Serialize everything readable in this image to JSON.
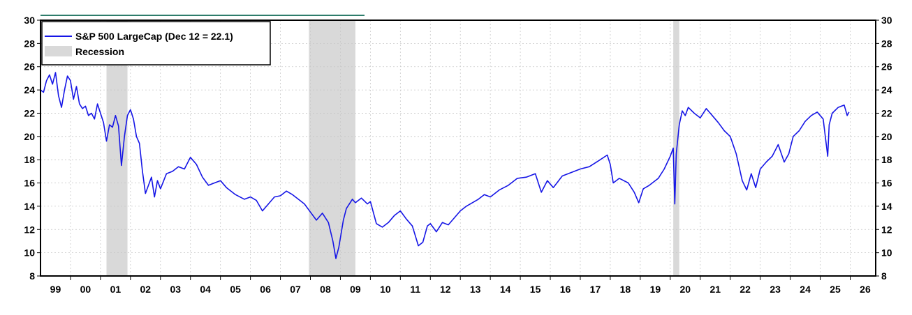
{
  "chart_data": {
    "type": "line",
    "title": "",
    "xlabel": "",
    "ylabel": "",
    "ylim": [
      8,
      30
    ],
    "xlim": [
      1999.0,
      2026.85
    ],
    "grid": true,
    "legend_position": "top-left",
    "y_ticks": [
      "8",
      "10",
      "12",
      "14",
      "16",
      "18",
      "20",
      "22",
      "24",
      "26",
      "28",
      "30"
    ],
    "x_ticks": [
      "99",
      "00",
      "01",
      "02",
      "03",
      "04",
      "05",
      "06",
      "07",
      "08",
      "09",
      "10",
      "11",
      "12",
      "13",
      "14",
      "15",
      "16",
      "17",
      "18",
      "19",
      "20",
      "21",
      "22",
      "23",
      "24",
      "25",
      "26"
    ],
    "colors": {
      "line": "#1515e6",
      "recession": "#d9d9d9",
      "top_rule": "#2e7d6b"
    },
    "legend": {
      "series_label": "S&P 500 LargeCap (Dec 12 = 22.1)",
      "recession_label": "Recession"
    },
    "recessions": [
      {
        "start": 2001.2,
        "end": 2001.9
      },
      {
        "start": 2007.95,
        "end": 2009.5
      },
      {
        "start": 2020.1,
        "end": 2020.3
      }
    ],
    "series": [
      {
        "name": "S&P 500 LargeCap (Dec 12 = 22.1)",
        "x": [
          1999.0,
          1999.1,
          1999.2,
          1999.3,
          1999.4,
          1999.5,
          1999.6,
          1999.7,
          1999.8,
          1999.9,
          2000.0,
          2000.1,
          2000.2,
          2000.3,
          2000.4,
          2000.5,
          2000.6,
          2000.7,
          2000.8,
          2000.9,
          2001.0,
          2001.1,
          2001.2,
          2001.3,
          2001.4,
          2001.5,
          2001.6,
          2001.7,
          2001.8,
          2001.9,
          2002.0,
          2002.1,
          2002.2,
          2002.3,
          2002.4,
          2002.5,
          2002.6,
          2002.7,
          2002.8,
          2002.9,
          2003.0,
          2003.2,
          2003.4,
          2003.6,
          2003.8,
          2004.0,
          2004.2,
          2004.4,
          2004.6,
          2004.8,
          2005.0,
          2005.2,
          2005.5,
          2005.8,
          2006.0,
          2006.2,
          2006.4,
          2006.6,
          2006.8,
          2007.0,
          2007.2,
          2007.4,
          2007.6,
          2007.8,
          2008.0,
          2008.2,
          2008.4,
          2008.6,
          2008.75,
          2008.85,
          2008.95,
          2009.1,
          2009.2,
          2009.3,
          2009.4,
          2009.5,
          2009.7,
          2009.9,
          2010.0,
          2010.2,
          2010.4,
          2010.6,
          2010.8,
          2011.0,
          2011.2,
          2011.4,
          2011.6,
          2011.75,
          2011.9,
          2012.0,
          2012.2,
          2012.4,
          2012.6,
          2012.8,
          2013.0,
          2013.2,
          2013.4,
          2013.6,
          2013.8,
          2014.0,
          2014.3,
          2014.6,
          2014.9,
          2015.2,
          2015.5,
          2015.7,
          2015.9,
          2016.1,
          2016.4,
          2016.7,
          2017.0,
          2017.3,
          2017.6,
          2017.9,
          2018.0,
          2018.1,
          2018.3,
          2018.6,
          2018.8,
          2018.95,
          2019.1,
          2019.3,
          2019.6,
          2019.8,
          2020.0,
          2020.1,
          2020.15,
          2020.2,
          2020.3,
          2020.4,
          2020.5,
          2020.6,
          2020.8,
          2021.0,
          2021.2,
          2021.4,
          2021.6,
          2021.8,
          2022.0,
          2022.2,
          2022.4,
          2022.55,
          2022.7,
          2022.85,
          2023.0,
          2023.2,
          2023.4,
          2023.6,
          2023.8,
          2023.95,
          2024.1,
          2024.3,
          2024.5,
          2024.7,
          2024.9,
          2025.1,
          2025.25,
          2025.3,
          2025.4,
          2025.6,
          2025.8,
          2025.9,
          2025.96
        ],
        "values": [
          24.0,
          23.8,
          24.8,
          25.3,
          24.5,
          25.5,
          23.5,
          22.5,
          24.0,
          25.2,
          24.8,
          23.2,
          24.3,
          22.8,
          22.4,
          22.6,
          21.8,
          22.0,
          21.5,
          22.8,
          22.0,
          21.2,
          19.6,
          21.0,
          20.8,
          21.8,
          20.9,
          17.5,
          20.0,
          21.8,
          22.3,
          21.5,
          20.0,
          19.4,
          17.0,
          15.1,
          15.8,
          16.5,
          14.8,
          16.2,
          15.5,
          16.8,
          17.0,
          17.4,
          17.2,
          18.2,
          17.6,
          16.5,
          15.8,
          16.0,
          16.2,
          15.6,
          15.0,
          14.6,
          14.8,
          14.5,
          13.6,
          14.2,
          14.8,
          14.9,
          15.3,
          15.0,
          14.6,
          14.2,
          13.5,
          12.8,
          13.4,
          12.6,
          11.0,
          9.5,
          10.5,
          12.8,
          13.8,
          14.2,
          14.6,
          14.3,
          14.7,
          14.2,
          14.4,
          12.5,
          12.2,
          12.6,
          13.2,
          13.6,
          12.9,
          12.3,
          10.6,
          10.9,
          12.3,
          12.5,
          11.8,
          12.6,
          12.4,
          13.0,
          13.6,
          14.0,
          14.3,
          14.6,
          15.0,
          14.8,
          15.4,
          15.8,
          16.4,
          16.5,
          16.8,
          15.2,
          16.2,
          15.6,
          16.6,
          16.9,
          17.2,
          17.4,
          17.9,
          18.4,
          17.6,
          16.0,
          16.4,
          16.0,
          15.2,
          14.3,
          15.5,
          15.8,
          16.4,
          17.2,
          18.3,
          19.0,
          14.2,
          18.5,
          21.0,
          22.2,
          21.8,
          22.5,
          22.0,
          21.6,
          22.4,
          21.8,
          21.2,
          20.5,
          20.0,
          18.5,
          16.2,
          15.4,
          16.8,
          15.6,
          17.2,
          17.8,
          18.3,
          19.3,
          17.8,
          18.5,
          20.0,
          20.5,
          21.3,
          21.8,
          22.1,
          21.5,
          18.3,
          21.0,
          22.0,
          22.5,
          22.7,
          21.8,
          22.1
        ]
      }
    ]
  }
}
